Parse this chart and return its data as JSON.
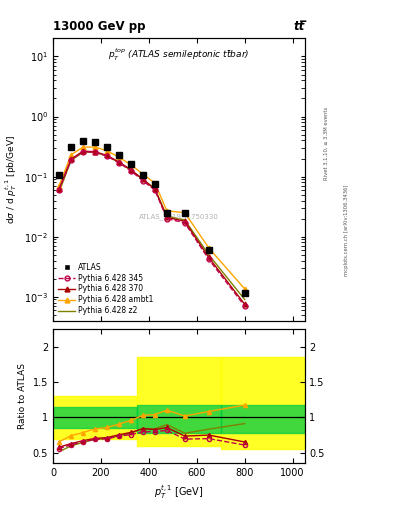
{
  "title_top": "13000 GeV pp",
  "title_right": "tt̅",
  "right_label1": "Rivet 3.1.10, ≥ 3.3M events",
  "right_label2": "mcplots.cern.ch [arXiv:1306.3436]",
  "annotation": "ATLAS_2019_I1750330",
  "xlabel": "$p_T^{t,1}$ [GeV]",
  "ylabel": "dσ / d $p_T^{t,1}$ [pb/GeV]",
  "ylabel_ratio": "Ratio to ATLAS",
  "xlim": [
    0,
    1050
  ],
  "ylim_main": [
    0.0004,
    20
  ],
  "ylim_ratio": [
    0.35,
    2.25
  ],
  "atlas_x": [
    25,
    75,
    125,
    175,
    225,
    275,
    325,
    375,
    425,
    475,
    550,
    650,
    800
  ],
  "atlas_y": [
    0.107,
    0.31,
    0.395,
    0.37,
    0.315,
    0.232,
    0.165,
    0.107,
    0.075,
    0.0245,
    0.0245,
    0.006,
    0.00115
  ],
  "py345_x": [
    25,
    75,
    125,
    175,
    225,
    275,
    325,
    375,
    425,
    475,
    550,
    650,
    800
  ],
  "py345_y": [
    0.06,
    0.19,
    0.26,
    0.255,
    0.22,
    0.17,
    0.125,
    0.085,
    0.06,
    0.02,
    0.017,
    0.0042,
    0.0007
  ],
  "py370_x": [
    25,
    75,
    125,
    175,
    225,
    275,
    325,
    375,
    425,
    475,
    550,
    650,
    800
  ],
  "py370_y": [
    0.062,
    0.195,
    0.265,
    0.26,
    0.225,
    0.175,
    0.13,
    0.09,
    0.062,
    0.021,
    0.018,
    0.0045,
    0.00075
  ],
  "pyambt1_x": [
    25,
    75,
    125,
    175,
    225,
    275,
    325,
    375,
    425,
    475,
    550,
    650,
    800
  ],
  "pyambt1_y": [
    0.07,
    0.23,
    0.31,
    0.31,
    0.27,
    0.21,
    0.158,
    0.11,
    0.078,
    0.027,
    0.025,
    0.0065,
    0.00135
  ],
  "pyz2_x": [
    25,
    75,
    125,
    175,
    225,
    275,
    325,
    375,
    425,
    475,
    550,
    650,
    800
  ],
  "pyz2_y": [
    0.055,
    0.185,
    0.255,
    0.255,
    0.22,
    0.172,
    0.128,
    0.09,
    0.063,
    0.022,
    0.019,
    0.005,
    0.0009
  ],
  "ratio_py345_x": [
    25,
    75,
    125,
    175,
    225,
    275,
    325,
    375,
    425,
    475,
    550,
    650,
    800
  ],
  "ratio_py345_y": [
    0.56,
    0.613,
    0.658,
    0.689,
    0.698,
    0.733,
    0.758,
    0.794,
    0.8,
    0.816,
    0.693,
    0.7,
    0.609
  ],
  "ratio_py370_x": [
    25,
    75,
    125,
    175,
    225,
    275,
    325,
    375,
    425,
    475,
    550,
    650,
    800
  ],
  "ratio_py370_y": [
    0.579,
    0.629,
    0.671,
    0.703,
    0.714,
    0.754,
    0.788,
    0.841,
    0.827,
    0.857,
    0.735,
    0.75,
    0.652
  ],
  "ratio_pyambt1_x": [
    25,
    75,
    125,
    175,
    225,
    275,
    325,
    375,
    425,
    475,
    550,
    650,
    800
  ],
  "ratio_pyambt1_y": [
    0.654,
    0.742,
    0.785,
    0.838,
    0.857,
    0.905,
    0.958,
    1.028,
    1.04,
    1.102,
    1.02,
    1.083,
    1.174
  ],
  "ratio_pyz2_x": [
    25,
    75,
    125,
    175,
    225,
    275,
    325,
    375,
    425,
    475,
    550,
    650,
    800
  ],
  "ratio_pyz2_y": [
    0.514,
    0.597,
    0.646,
    0.689,
    0.698,
    0.741,
    0.776,
    0.841,
    0.84,
    0.898,
    0.776,
    0.833,
    0.913
  ],
  "band_yellow_edges": [
    0,
    350,
    700,
    1050
  ],
  "band_yellow_low": [
    0.7,
    0.6,
    0.55,
    0.55
  ],
  "band_yellow_high": [
    1.3,
    1.85,
    1.85,
    1.85
  ],
  "band_green_edges": [
    0,
    350,
    700,
    1050
  ],
  "band_green_low": [
    0.85,
    0.78,
    0.78,
    0.78
  ],
  "band_green_high": [
    1.15,
    1.18,
    1.18,
    1.18
  ],
  "color_atlas": "#000000",
  "color_py345": "#c0004a",
  "color_py370": "#aa0000",
  "color_pyambt1": "#ffa500",
  "color_pyz2": "#808000",
  "color_yellow_band": "#ffff00",
  "color_green_band": "#00cc44"
}
